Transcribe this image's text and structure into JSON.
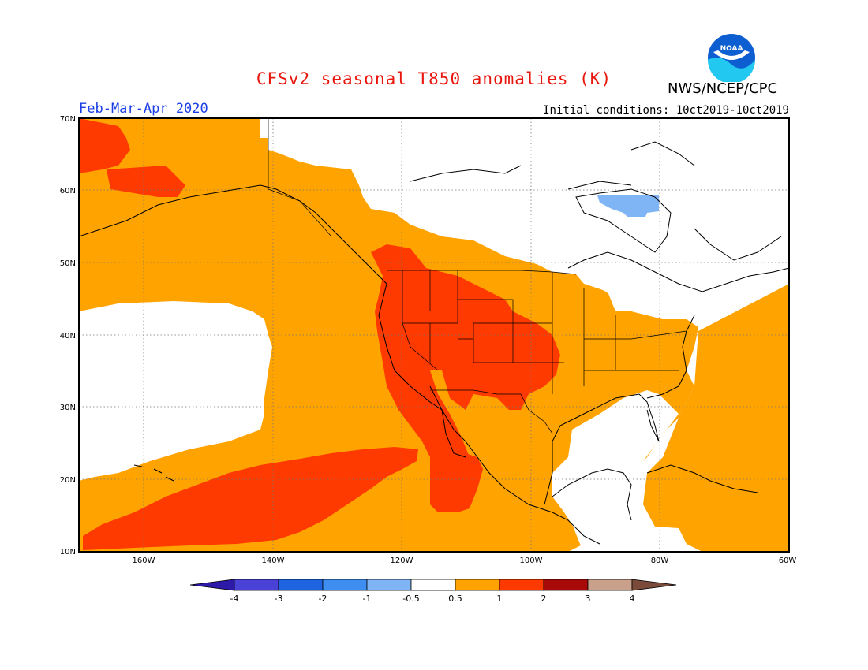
{
  "header": {
    "title": "CFSv2 seasonal T850 anomalies (K)",
    "period": "Feb-Mar-Apr 2020",
    "initial_conditions": "Initial conditions: 10ct2019-10ct2019",
    "agency": "NWS/NCEP/CPC",
    "logo_text": "NOAA"
  },
  "map": {
    "lat_labels": [
      "70N",
      "60N",
      "50N",
      "40N",
      "30N",
      "20N",
      "10N"
    ],
    "lon_labels": [
      "160W",
      "140W",
      "120W",
      "100W",
      "80W",
      "60W"
    ],
    "lat_range": [
      10,
      70
    ],
    "lon_range": [
      -170,
      -60
    ],
    "colors": {
      "above_0_5": "#ffa300",
      "above_1": "#ff3a00",
      "below_0_5": "#7fb4f5",
      "neutral": "#ffffff"
    }
  },
  "colorbar": {
    "labels": [
      "-4",
      "-3",
      "-2",
      "-1",
      "-0.5",
      "0.5",
      "1",
      "2",
      "3",
      "4"
    ],
    "colors": [
      "#2e1aa8",
      "#4a41d6",
      "#1e64e0",
      "#3d8ef0",
      "#7fb4f5",
      "#ffffff",
      "#ffa300",
      "#ff3a00",
      "#a80a0a",
      "#c9a08a",
      "#7a4a3a"
    ]
  }
}
